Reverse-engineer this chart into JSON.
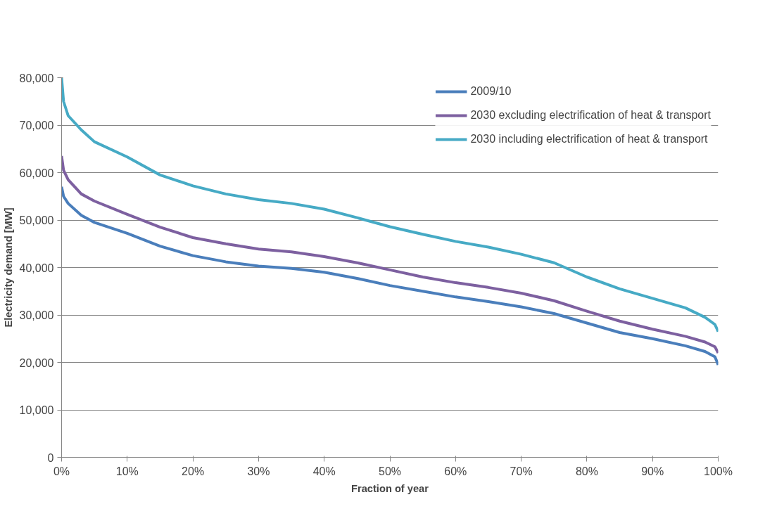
{
  "chart_data": {
    "type": "line",
    "xlabel": "Fraction of year",
    "ylabel": "Electricity demand [MW]",
    "xlim": [
      0,
      100
    ],
    "ylim": [
      0,
      80000
    ],
    "xticks": [
      {
        "value": 0,
        "label": "0%"
      },
      {
        "value": 10,
        "label": "10%"
      },
      {
        "value": 20,
        "label": "20%"
      },
      {
        "value": 30,
        "label": "30%"
      },
      {
        "value": 40,
        "label": "40%"
      },
      {
        "value": 50,
        "label": "50%"
      },
      {
        "value": 60,
        "label": "60%"
      },
      {
        "value": 70,
        "label": "70%"
      },
      {
        "value": 80,
        "label": "80%"
      },
      {
        "value": 90,
        "label": "90%"
      },
      {
        "value": 100,
        "label": "100%"
      }
    ],
    "yticks": [
      {
        "value": 0,
        "label": "0"
      },
      {
        "value": 10000,
        "label": "10,000"
      },
      {
        "value": 20000,
        "label": "20,000"
      },
      {
        "value": 30000,
        "label": "30,000"
      },
      {
        "value": 40000,
        "label": "40,000"
      },
      {
        "value": 50000,
        "label": "50,000"
      },
      {
        "value": 60000,
        "label": "60,000"
      },
      {
        "value": 70000,
        "label": "70,000"
      },
      {
        "value": 80000,
        "label": "80,000"
      }
    ],
    "grid": "y",
    "legend": "top right",
    "marker": "none",
    "line_style": "solid",
    "x": [
      0,
      0.3,
      1,
      3,
      5,
      10,
      15,
      20,
      25,
      30,
      35,
      40,
      45,
      50,
      55,
      60,
      65,
      70,
      75,
      80,
      85,
      90,
      95,
      98,
      99.5,
      100
    ],
    "series": [
      {
        "name": "2009/10",
        "color": "#4a7ebb",
        "values": [
          57000,
          55000,
          53500,
          51000,
          49500,
          47200,
          44500,
          42500,
          41200,
          40300,
          39800,
          39000,
          37700,
          36200,
          35000,
          33800,
          32800,
          31700,
          30300,
          28300,
          26300,
          25000,
          23500,
          22300,
          21200,
          19500
        ]
      },
      {
        "name": "2030 excluding electrification of heat & transport",
        "color": "#7d60a0",
        "values": [
          63500,
          60500,
          58500,
          55500,
          54000,
          51200,
          48500,
          46300,
          45000,
          43900,
          43300,
          42300,
          41000,
          39500,
          38000,
          36800,
          35800,
          34600,
          33000,
          30800,
          28700,
          27000,
          25500,
          24300,
          23300,
          22000
        ]
      },
      {
        "name": "2030 including electrification of heat & transport",
        "color": "#46aac5",
        "values": [
          80000,
          75000,
          72000,
          69000,
          66500,
          63300,
          59500,
          57200,
          55500,
          54300,
          53500,
          52300,
          50500,
          48600,
          47000,
          45500,
          44300,
          42800,
          41000,
          38000,
          35500,
          33500,
          31500,
          29500,
          28000,
          26500
        ]
      }
    ]
  }
}
